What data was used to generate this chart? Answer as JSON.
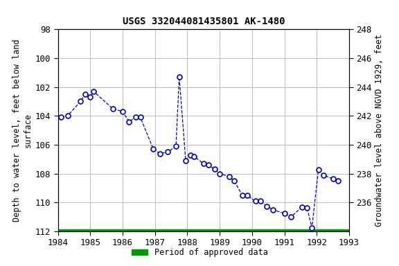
{
  "title": "USGS 332044081435801 AK-1480",
  "legend_label": "Period of approved data",
  "x_data": [
    1984.1,
    1984.3,
    1984.7,
    1984.85,
    1985.0,
    1985.1,
    1985.7,
    1986.0,
    1986.2,
    1986.4,
    1986.55,
    1986.95,
    1987.15,
    1987.4,
    1987.65,
    1987.75,
    1987.95,
    1988.1,
    1988.2,
    1988.5,
    1988.65,
    1988.85,
    1989.0,
    1989.3,
    1989.45,
    1989.7,
    1989.85,
    1990.1,
    1990.25,
    1990.45,
    1990.65,
    1991.0,
    1991.2,
    1991.55,
    1991.7,
    1991.85,
    1992.05,
    1992.2,
    1992.5,
    1992.65
  ],
  "y_data": [
    104.1,
    104.0,
    103.0,
    102.5,
    102.7,
    102.3,
    103.5,
    103.7,
    104.4,
    104.1,
    104.1,
    106.3,
    106.6,
    106.5,
    106.1,
    101.3,
    107.1,
    106.7,
    106.8,
    107.3,
    107.4,
    107.7,
    108.0,
    108.2,
    108.5,
    109.5,
    109.5,
    109.9,
    109.9,
    110.25,
    110.5,
    110.75,
    111.0,
    110.3,
    110.35,
    111.75,
    107.75,
    108.1,
    108.35,
    108.5
  ],
  "xlim": [
    1984,
    1993
  ],
  "ylim": [
    112,
    98
  ],
  "yticks_left": [
    98,
    100,
    102,
    104,
    106,
    108,
    110,
    112
  ],
  "right_ticks_depth": [
    98,
    100,
    102,
    104,
    106,
    108,
    110
  ],
  "right_ticks_elev": [
    248,
    246,
    244,
    242,
    240,
    238,
    236
  ],
  "xticks": [
    1984,
    1985,
    1986,
    1987,
    1988,
    1989,
    1990,
    1991,
    1992,
    1993
  ],
  "line_color": "#0000cc",
  "marker_color": "#0000cc",
  "grid_color": "#bbbbbb",
  "background_color": "#ffffff",
  "legend_color": "#009900",
  "title_fontsize": 10,
  "label_fontsize": 8.5,
  "tick_fontsize": 9
}
